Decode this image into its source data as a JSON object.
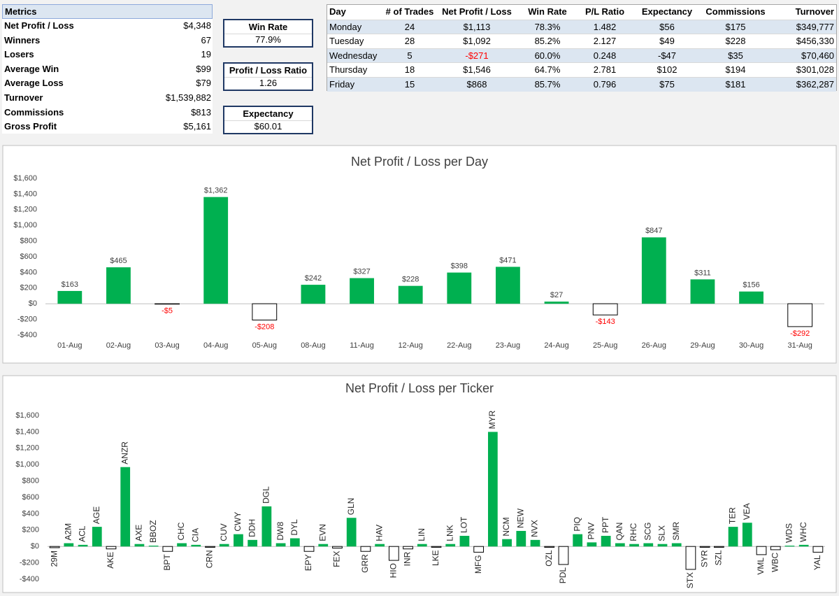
{
  "metrics": {
    "header": "Metrics",
    "rows": [
      [
        "Net Profit / Loss",
        "$4,348"
      ],
      [
        "Winners",
        "67"
      ],
      [
        "Losers",
        "19"
      ],
      [
        "Average Win",
        "$99"
      ],
      [
        "Average Loss",
        "$79"
      ],
      [
        "Turnover",
        "$1,539,882"
      ],
      [
        "Commissions",
        "$813"
      ],
      [
        "Gross Profit",
        "$5,161"
      ]
    ]
  },
  "kpis": [
    {
      "title": "Win Rate",
      "value": "77.9%"
    },
    {
      "title": "Profit / Loss Ratio",
      "value": "1.26"
    },
    {
      "title": "Expectancy",
      "value": "$60.01"
    }
  ],
  "day_table": {
    "columns": [
      "Day",
      "# of Trades",
      "Net Profit / Loss",
      "Win Rate",
      "P/L Ratio",
      "Expectancy",
      "Commissions",
      "Turnover"
    ],
    "rows": [
      [
        "Monday",
        "24",
        "$1,113",
        "78.3%",
        "1.482",
        "$56",
        "$175",
        "$349,777"
      ],
      [
        "Tuesday",
        "28",
        "$1,092",
        "85.2%",
        "2.127",
        "$49",
        "$228",
        "$456,330"
      ],
      [
        "Wednesday",
        "5",
        "-$271",
        "60.0%",
        "0.248",
        "-$47",
        "$35",
        "$70,460"
      ],
      [
        "Thursday",
        "18",
        "$1,546",
        "64.7%",
        "2.781",
        "$102",
        "$194",
        "$301,028"
      ],
      [
        "Friday",
        "15",
        "$868",
        "85.7%",
        "0.796",
        "$75",
        "$181",
        "$362,287"
      ]
    ]
  },
  "chart_data": [
    {
      "type": "bar",
      "title": "Net Profit / Loss per Day",
      "categories": [
        "01-Aug",
        "02-Aug",
        "03-Aug",
        "04-Aug",
        "05-Aug",
        "08-Aug",
        "11-Aug",
        "12-Aug",
        "22-Aug",
        "23-Aug",
        "24-Aug",
        "25-Aug",
        "26-Aug",
        "29-Aug",
        "30-Aug",
        "31-Aug"
      ],
      "values": [
        163,
        465,
        -5,
        1362,
        -208,
        242,
        327,
        228,
        398,
        471,
        27,
        -143,
        847,
        311,
        156,
        -292
      ],
      "value_labels": [
        "$163",
        "$465",
        "-$5",
        "$1,362",
        "-$208",
        "$242",
        "$327",
        "$228",
        "$398",
        "$471",
        "$27",
        "-$143",
        "$847",
        "$311",
        "$156",
        "-$292"
      ],
      "color": "#00b050",
      "negative_color": "#ffffff",
      "negative_label_color": "#ff0000",
      "ylim": [
        -400,
        1600
      ],
      "yticks": [
        {
          "value": 1600,
          "label": "$1,600"
        },
        {
          "value": 1400,
          "label": "$1,400"
        },
        {
          "value": 1200,
          "label": "$1,200"
        },
        {
          "value": 1000,
          "label": "$1,000"
        },
        {
          "value": 800,
          "label": "$800"
        },
        {
          "value": 600,
          "label": "$600"
        },
        {
          "value": 400,
          "label": "$400"
        },
        {
          "value": 200,
          "label": "$200"
        },
        {
          "value": 0,
          "label": "$0"
        },
        {
          "value": -200,
          "label": "-$200"
        },
        {
          "value": -400,
          "label": "-$400"
        }
      ],
      "grid": false
    },
    {
      "type": "bar",
      "title": "Net Profit / Loss per Ticker",
      "categories": [
        "29M",
        "A2M",
        "ACL",
        "AGE",
        "AKE",
        "ANZR",
        "AXE",
        "BBOZ",
        "BPT",
        "CHC",
        "CIA",
        "CRN",
        "CUV",
        "CWY",
        "DDH",
        "DGL",
        "DW8",
        "DYL",
        "EPY",
        "EVN",
        "FEX",
        "GLN",
        "GRR",
        "HAV",
        "HIO",
        "INR",
        "LIN",
        "LKE",
        "LNK",
        "LOT",
        "MFG",
        "MYR",
        "NCM",
        "NEW",
        "NVX",
        "OZL",
        "PDL",
        "PIQ",
        "PNV",
        "PPT",
        "QAN",
        "RHC",
        "SCG",
        "SLX",
        "SMR",
        "STX",
        "SYR",
        "SZL",
        "TER",
        "VEA",
        "VML",
        "WBC",
        "WDS",
        "WHC",
        "YAL"
      ],
      "values": [
        -15,
        40,
        20,
        240,
        -30,
        970,
        30,
        10,
        -60,
        40,
        20,
        -10,
        30,
        150,
        80,
        490,
        40,
        100,
        -60,
        30,
        -20,
        350,
        -60,
        30,
        -170,
        -30,
        30,
        -10,
        30,
        130,
        -70,
        1400,
        90,
        190,
        80,
        -10,
        -220,
        150,
        50,
        130,
        40,
        30,
        40,
        30,
        40,
        -280,
        -10,
        -10,
        240,
        290,
        -100,
        -40,
        10,
        20,
        -70
      ],
      "color": "#00b050",
      "negative_color": "#ffffff",
      "ylim": [
        -400,
        1600
      ],
      "yticks": [
        {
          "value": 1600,
          "label": "$1,600"
        },
        {
          "value": 1400,
          "label": "$1,400"
        },
        {
          "value": 1200,
          "label": "$1,200"
        },
        {
          "value": 1000,
          "label": "$1,000"
        },
        {
          "value": 800,
          "label": "$800"
        },
        {
          "value": 600,
          "label": "$600"
        },
        {
          "value": 400,
          "label": "$400"
        },
        {
          "value": 200,
          "label": "$200"
        },
        {
          "value": 0,
          "label": "$0"
        },
        {
          "value": -200,
          "label": "-$200"
        },
        {
          "value": -400,
          "label": "-$400"
        }
      ],
      "grid": false
    }
  ]
}
